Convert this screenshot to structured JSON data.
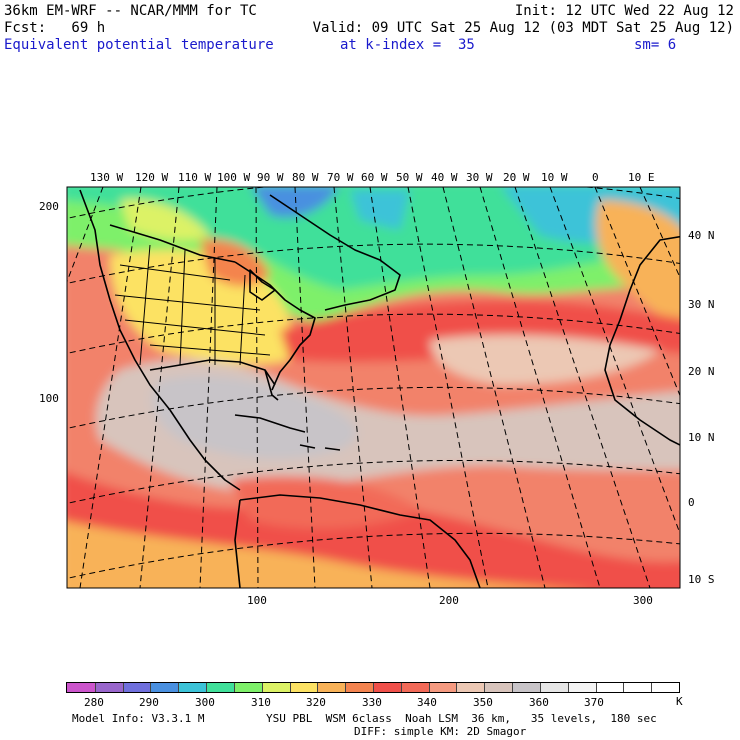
{
  "header": {
    "model": "36km EM-WRF -- NCAR/MMM for TC",
    "init": "Init: 12 UTC Wed 22 Aug 12",
    "fcst": "Fcst:   69 h",
    "valid": "Valid: 09 UTC Sat 25 Aug 12 (03 MDT Sat 25 Aug 12)",
    "field": "Equivalent potential temperature",
    "level": "at k-index =  35",
    "smoothing": "sm= 6"
  },
  "map": {
    "top_lon_labels": [
      "130 W",
      "120 W",
      "110 W",
      "100 W",
      "90 W",
      "80 W",
      "70 W",
      "60 W",
      "50 W",
      "40 W",
      "30 W",
      "20 W",
      "10 W",
      "0",
      "10 E"
    ],
    "right_lat_labels": [
      "40 N",
      "30 N",
      "20 N",
      "10 N",
      "0",
      "10 S"
    ],
    "left_grid_labels": [
      "200",
      "100"
    ],
    "bottom_grid_labels": [
      "100",
      "200",
      "300"
    ]
  },
  "colorbar": {
    "colors": [
      "#cc55cc",
      "#9966cc",
      "#7070dd",
      "#4a90e0",
      "#3cc3d8",
      "#40e09a",
      "#7ef06a",
      "#dcf266",
      "#fce264",
      "#f8b258",
      "#f48450",
      "#f0504a",
      "#f26a58",
      "#f59a80",
      "#ecc8b4",
      "#d8c4bc",
      "#c8c4c8",
      "#e6e6e6",
      "#f4f4f4",
      "#ffffff",
      "#ffffff",
      "#ffffff"
    ],
    "ticks": [
      "280",
      "290",
      "300",
      "310",
      "320",
      "330",
      "340",
      "350",
      "360",
      "370"
    ],
    "unit": "K"
  },
  "footer": {
    "model_info": "Model Info: V3.3.1 M",
    "physics": "YSU PBL  WSM 6class  Noah LSM  36 km,   35 levels,  180 sec",
    "diffusion": "DIFF: simple KM: 2D Smagor"
  }
}
